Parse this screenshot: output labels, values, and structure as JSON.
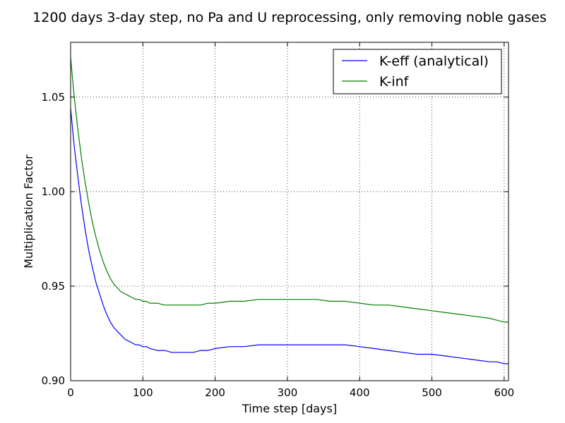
{
  "chart_data": {
    "type": "line",
    "title": "1200 days 3-day step, no Pa and U reprocessing, only removing noble gases",
    "xlabel": "Time step [days]",
    "ylabel": "Multiplication Factor",
    "xlim": [
      0,
      606
    ],
    "ylim": [
      0.9,
      1.079
    ],
    "xticks": [
      0,
      100,
      200,
      300,
      400,
      500,
      600
    ],
    "yticks": [
      0.9,
      0.95,
      1.0,
      1.05
    ],
    "xtick_labels": [
      "0",
      "100",
      "200",
      "300",
      "400",
      "500",
      "600"
    ],
    "ytick_labels": [
      "0.90",
      "0.95",
      "1.00",
      "1.05"
    ],
    "grid": true,
    "legend_position": "top-right",
    "series": [
      {
        "name": "K-eff (analytical)",
        "color": "#0000ff",
        "x": [
          0,
          5,
          10,
          15,
          20,
          25,
          30,
          35,
          40,
          45,
          50,
          55,
          60,
          65,
          70,
          75,
          80,
          85,
          90,
          95,
          100,
          105,
          110,
          120,
          130,
          140,
          150,
          160,
          170,
          180,
          190,
          200,
          220,
          240,
          260,
          280,
          300,
          320,
          340,
          360,
          380,
          400,
          420,
          440,
          460,
          480,
          500,
          520,
          540,
          560,
          580,
          590,
          600,
          606
        ],
        "y": [
          1.044,
          1.024,
          1.008,
          0.993,
          0.98,
          0.969,
          0.96,
          0.952,
          0.946,
          0.94,
          0.935,
          0.931,
          0.928,
          0.926,
          0.924,
          0.922,
          0.921,
          0.92,
          0.919,
          0.919,
          0.918,
          0.918,
          0.917,
          0.916,
          0.916,
          0.915,
          0.915,
          0.915,
          0.915,
          0.916,
          0.916,
          0.917,
          0.918,
          0.918,
          0.919,
          0.919,
          0.919,
          0.919,
          0.919,
          0.919,
          0.919,
          0.918,
          0.917,
          0.916,
          0.915,
          0.914,
          0.914,
          0.913,
          0.912,
          0.911,
          0.91,
          0.91,
          0.909,
          0.909
        ]
      },
      {
        "name": "K-inf",
        "color": "#008000",
        "x": [
          0,
          5,
          10,
          15,
          20,
          25,
          30,
          35,
          40,
          45,
          50,
          55,
          60,
          65,
          70,
          75,
          80,
          85,
          90,
          95,
          100,
          105,
          110,
          120,
          130,
          140,
          150,
          160,
          170,
          180,
          190,
          200,
          220,
          240,
          260,
          280,
          300,
          320,
          340,
          360,
          380,
          400,
          420,
          440,
          460,
          480,
          500,
          520,
          540,
          560,
          580,
          590,
          600,
          606
        ],
        "y": [
          1.071,
          1.05,
          1.033,
          1.018,
          1.005,
          0.994,
          0.984,
          0.976,
          0.969,
          0.963,
          0.958,
          0.954,
          0.951,
          0.949,
          0.947,
          0.946,
          0.945,
          0.944,
          0.943,
          0.943,
          0.942,
          0.942,
          0.941,
          0.941,
          0.94,
          0.94,
          0.94,
          0.94,
          0.94,
          0.94,
          0.941,
          0.941,
          0.942,
          0.942,
          0.943,
          0.943,
          0.943,
          0.943,
          0.943,
          0.942,
          0.942,
          0.941,
          0.94,
          0.94,
          0.939,
          0.938,
          0.937,
          0.936,
          0.935,
          0.934,
          0.933,
          0.932,
          0.931,
          0.931
        ]
      }
    ]
  }
}
